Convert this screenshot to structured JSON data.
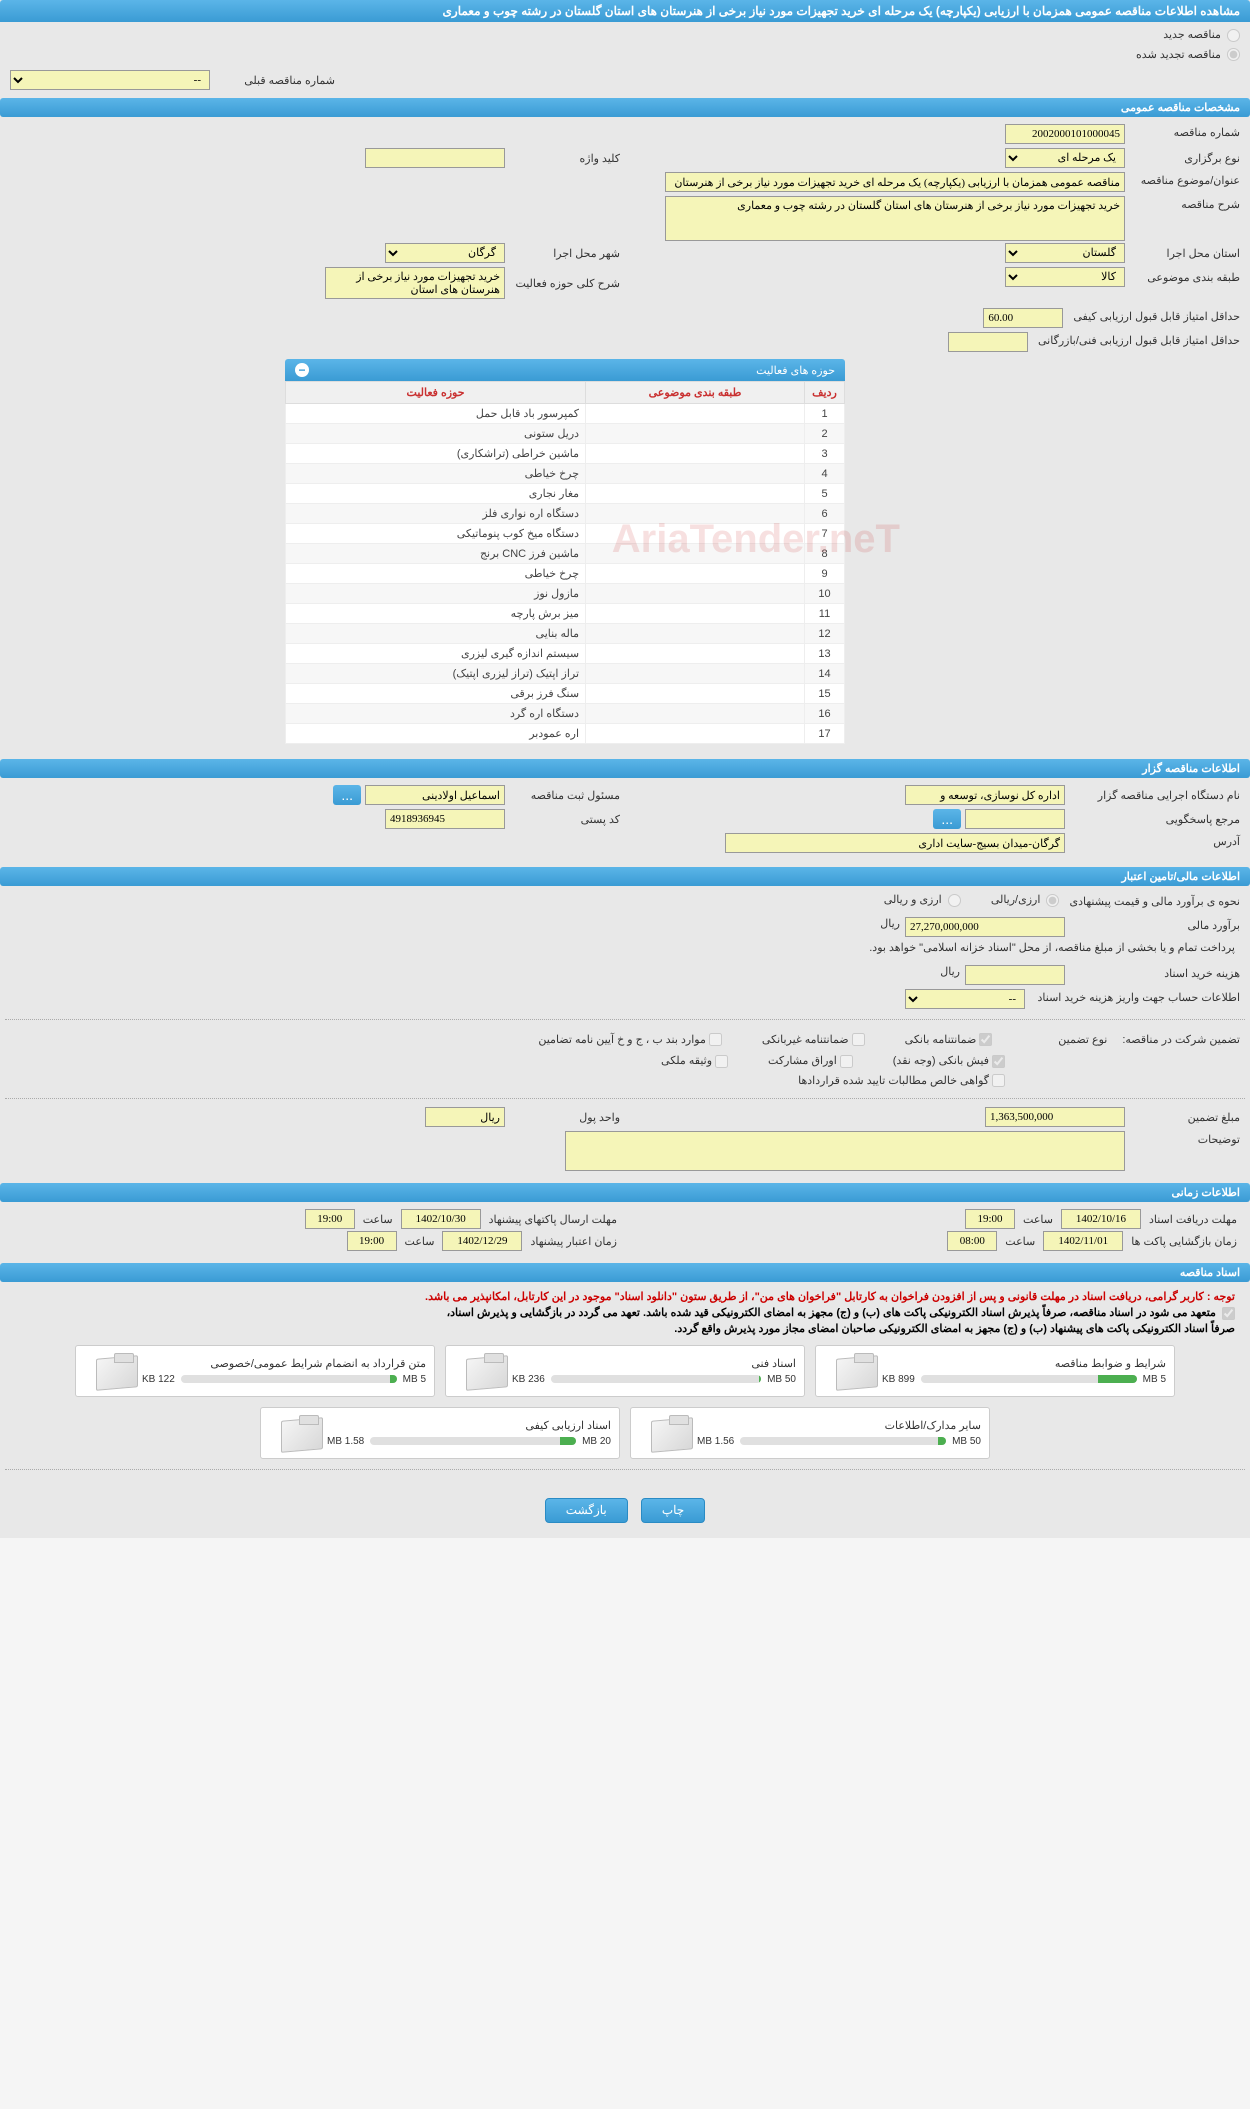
{
  "page_title": "مشاهده اطلاعات مناقصه عمومی همزمان با ارزیابی (یکپارچه) یک مرحله ای خرید تجهیزات مورد نیاز برخی از هنرستان های استان گلستان در رشته چوب و معماری",
  "top_radios": {
    "new_tender": "مناقصه جدید",
    "renewed_tender": "مناقصه تجدید شده",
    "prev_num_label": "شماره مناقصه قبلی",
    "prev_num_value": "--"
  },
  "sections": {
    "general": "مشخصات مناقصه عمومی",
    "owner": "اطلاعات مناقصه گزار",
    "financial": "اطلاعات مالی/تامین اعتبار",
    "time": "اطلاعات زمانی",
    "docs": "اسناد مناقصه"
  },
  "general": {
    "tender_num_label": "شماره مناقصه",
    "tender_num": "2002000101000045",
    "type_label": "نوع برگزاری",
    "type_value": "یک مرحله ای",
    "keyword_label": "کلید واژه",
    "keyword_value": "",
    "title_label": "عنوان/موضوع مناقصه",
    "title_value": "مناقصه عمومی همزمان با ارزیابی (یکپارچه) یک مرحله ای خرید تجهیزات مورد نیاز برخی از هنرستان",
    "desc_label": "شرح مناقصه",
    "desc_value": "خرید تجهیزات مورد نیاز برخی از هنرستان های استان گلستان در رشته چوب و معماری",
    "province_label": "استان محل اجرا",
    "province_value": "گلستان",
    "city_label": "شهر محل اجرا",
    "city_value": "گرگان",
    "category_label": "طبقه بندی موضوعی",
    "category_value": "کالا",
    "activity_desc_label": "شرح کلی حوزه فعالیت",
    "activity_desc_value": "خرید تجهیزات مورد نیاز برخی از هنرستان های استان",
    "min_quality_label": "حداقل امتیاز قابل قبول ارزیابی کیفی",
    "min_quality_value": "60.00",
    "min_tech_label": "حداقل امتیاز قابل قبول ارزیابی فنی/بازرگانی",
    "min_tech_value": ""
  },
  "activity_table": {
    "title": "حوزه های فعالیت",
    "headers": {
      "row": "ردیف",
      "category": "طبقه بندی موضوعی",
      "area": "حوزه فعالیت"
    },
    "rows": [
      {
        "n": "1",
        "name": "کمپرسور باد قابل حمل"
      },
      {
        "n": "2",
        "name": "دریل ستونی"
      },
      {
        "n": "3",
        "name": "ماشین خراطی (تراشکاری)"
      },
      {
        "n": "4",
        "name": "چرخ خیاطی"
      },
      {
        "n": "5",
        "name": "مغار نجاری"
      },
      {
        "n": "6",
        "name": "دستگاه اره نواری فلز"
      },
      {
        "n": "7",
        "name": "دستگاه میخ کوب پنوماتیکی"
      },
      {
        "n": "8",
        "name": "ماشین فرز CNC برنج"
      },
      {
        "n": "9",
        "name": "چرخ خیاطی"
      },
      {
        "n": "10",
        "name": "مازول نوز"
      },
      {
        "n": "11",
        "name": "میز برش پارچه"
      },
      {
        "n": "12",
        "name": "ماله بنایی"
      },
      {
        "n": "13",
        "name": "سیستم اندازه گیری لیزری"
      },
      {
        "n": "14",
        "name": "تراز اپتیک (تراز لیزری اپتیک)"
      },
      {
        "n": "15",
        "name": "سنگ فرز برقی"
      },
      {
        "n": "16",
        "name": "دستگاه اره گرد"
      },
      {
        "n": "17",
        "name": "اره عمودبر"
      }
    ]
  },
  "owner": {
    "org_label": "نام دستگاه اجرایی مناقصه گزار",
    "org_value": "اداره کل نوسازی، توسعه و",
    "responsible_label": "مسئول ثبت مناقصه",
    "responsible_value": "اسماعیل اولادینی",
    "btn_dots": "...",
    "ref_label": "مرجع پاسخگویی",
    "ref_value": "",
    "postal_label": "کد پستی",
    "postal_value": "4918936945",
    "address_label": "آدرس",
    "address_value": "گرگان-میدان بسیج-سایت اداری"
  },
  "financial": {
    "estimate_label": "نحوه ی برآورد مالی و قیمت پیشنهادی",
    "rial_radio": "ارزی/ریالی",
    "both_radio": "ارزی و ریالی",
    "estimate_amount_label": "برآورد مالی",
    "estimate_amount": "27,270,000,000",
    "currency": "ریال",
    "payment_note": "پرداخت تمام و یا بخشی از مبلغ مناقصه، از محل \"اسناد خزانه اسلامی\" خواهد بود.",
    "doc_cost_label": "هزینه خرید اسناد",
    "doc_cost_value": "",
    "account_label": "اطلاعات حساب جهت واریز هزینه خرید اسناد",
    "account_value": "--",
    "guarantee_label": "تضمین شرکت در مناقصه:",
    "guarantee_type_label": "نوع تضمین",
    "chk_bank": "ضمانتنامه بانکی",
    "chk_nonbank": "ضمانتنامه غیربانکی",
    "chk_items": "موارد بند ب ، ج و خ آیین نامه تضامین",
    "chk_cash": "فیش بانکی (وجه نقد)",
    "chk_securities": "اوراق مشارکت",
    "chk_property": "وثیقه ملکی",
    "chk_receivables": "گواهی خالص مطالبات تایید شده قراردادها",
    "guarantee_amount_label": "مبلغ تضمین",
    "guarantee_amount": "1,363,500,000",
    "unit_label": "واحد پول",
    "unit_value": "ریال",
    "notes_label": "توضیحات",
    "notes_value": ""
  },
  "time": {
    "receive_deadline_label": "مهلت دریافت اسناد",
    "receive_date": "1402/10/16",
    "receive_time": "19:00",
    "send_deadline_label": "مهلت ارسال پاکتهای پیشنهاد",
    "send_date": "1402/10/30",
    "send_time": "19:00",
    "open_label": "زمان بازگشایی پاکت ها",
    "open_date": "1402/11/01",
    "open_time": "08:00",
    "validity_label": "زمان اعتبار پیشنهاد",
    "validity_date": "1402/12/29",
    "validity_time": "19:00",
    "hour_label": "ساعت"
  },
  "docs": {
    "red_note": "توجه : کاربر گرامی، دریافت اسناد در مهلت قانونی و پس از افزودن فراخوان به کارتابل \"فراخوان های من\"، از طریق ستون \"دانلود اسناد\" موجود در این کارتابل، امکانپذیر می باشد.",
    "note1": "متعهد می شود در اسناد مناقصه، صرفاً پذیرش اسناد الکترونیکی پاکت های (ب) و (ج) مجهز به امضای الکترونیکی قید شده باشد. تعهد می گردد در بازگشایی و پذیرش اسناد،",
    "note2": "صرفاً اسناد الکترونیکی پاکت های پیشنهاد (ب) و (ج) مجهز به امضای الکترونیکی صاحبان امضای مجاز مورد پذیرش واقع گردد.",
    "cards": [
      {
        "title": "شرایط و ضوابط مناقصه",
        "used": "899 KB",
        "total": "5 MB",
        "pct": 18
      },
      {
        "title": "اسناد فنی",
        "used": "236 KB",
        "total": "50 MB",
        "pct": 1
      },
      {
        "title": "متن قرارداد به انضمام شرایط عمومی/خصوصی",
        "used": "122 KB",
        "total": "5 MB",
        "pct": 3
      },
      {
        "title": "سایر مدارک/اطلاعات",
        "used": "1.56 MB",
        "total": "50 MB",
        "pct": 4
      },
      {
        "title": "اسناد ارزیابی کیفی",
        "used": "1.58 MB",
        "total": "20 MB",
        "pct": 8
      }
    ]
  },
  "buttons": {
    "print": "چاپ",
    "back": "بازگشت"
  },
  "watermark": "AriaTender.neT"
}
